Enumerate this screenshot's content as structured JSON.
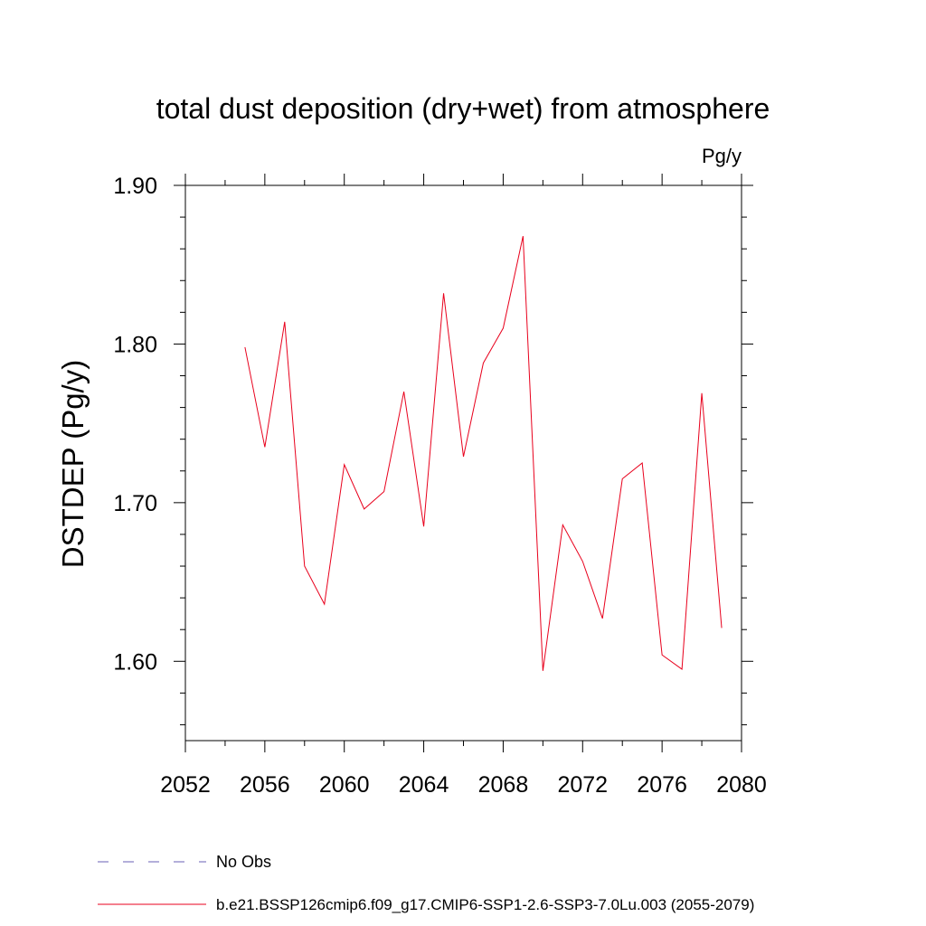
{
  "chart_data": {
    "type": "line",
    "title": "total dust deposition (dry+wet) from atmosphere",
    "units_label": "Pg/y",
    "ylabel": "DSTDEP  (Pg/y)",
    "xlabel": "",
    "xlim": [
      2052,
      2080
    ],
    "ylim": [
      1.55,
      1.9
    ],
    "x_ticks": [
      2052,
      2056,
      2060,
      2064,
      2068,
      2072,
      2076,
      2080
    ],
    "x_minor_ticks": [
      2054,
      2058,
      2062,
      2066,
      2070,
      2074,
      2078
    ],
    "y_ticks": [
      1.6,
      1.7,
      1.8,
      1.9
    ],
    "y_tick_labels": [
      "1.60",
      "1.70",
      "1.80",
      "1.90"
    ],
    "y_minor_ticks": [
      1.56,
      1.58,
      1.62,
      1.64,
      1.66,
      1.68,
      1.72,
      1.74,
      1.76,
      1.78,
      1.82,
      1.84,
      1.86,
      1.88
    ],
    "grid": false,
    "legend_position": "bottom",
    "series": [
      {
        "name": "b.e21.BSSP126cmip6.f09_g17.CMIP6-SSP1-2.6-SSP3-7.0Lu.003 (2055-2079)",
        "color": "#e8001c",
        "dash": "solid",
        "x": [
          2055,
          2056,
          2057,
          2058,
          2059,
          2060,
          2061,
          2062,
          2063,
          2064,
          2065,
          2066,
          2067,
          2068,
          2069,
          2070,
          2071,
          2072,
          2073,
          2074,
          2075,
          2076,
          2077,
          2078,
          2079
        ],
        "y": [
          1.798,
          1.735,
          1.814,
          1.66,
          1.636,
          1.724,
          1.696,
          1.707,
          1.77,
          1.685,
          1.832,
          1.729,
          1.788,
          1.81,
          1.868,
          1.594,
          1.686,
          1.663,
          1.627,
          1.715,
          1.725,
          1.604,
          1.595,
          1.769,
          1.621
        ]
      }
    ],
    "legend": [
      {
        "label": "No Obs",
        "color": "#6a5fb5",
        "dash": "dashed"
      },
      {
        "label": "b.e21.BSSP126cmip6.f09_g17.CMIP6-SSP1-2.6-SSP3-7.0Lu.003 (2055-2079)",
        "color": "#e8001c",
        "dash": "solid"
      }
    ]
  }
}
